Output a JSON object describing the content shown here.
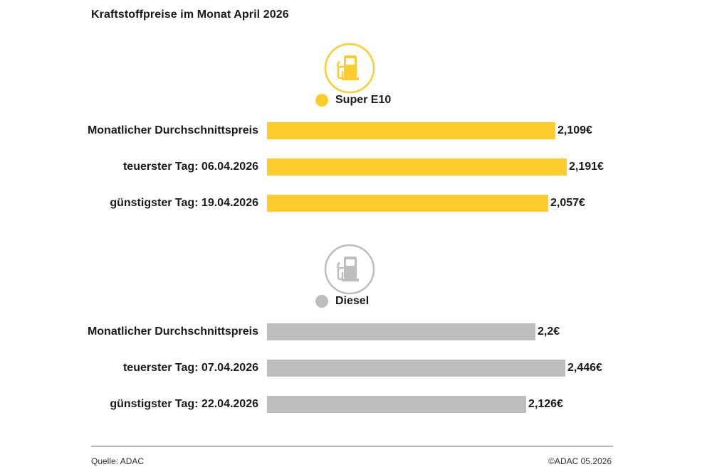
{
  "chart_data": {
    "type": "bar",
    "orientation": "horizontal",
    "title": "Kraftstoffpreise im Monat April 2026",
    "unit": "€",
    "groups": [
      {
        "name": "Super E10",
        "color": "#ffcc2e",
        "icon": "fuel-pump-icon",
        "categories": [
          "Monatlicher Durchschnittspreis",
          "teuerster Tag: 06.04.2026",
          "günstigster Tag: 19.04.2026"
        ],
        "values": [
          2.109,
          2.191,
          2.057
        ],
        "value_labels": [
          "2,109€",
          "2,191€",
          "2,057€"
        ]
      },
      {
        "name": "Diesel",
        "color": "#bdbdbd",
        "icon": "fuel-pump-icon",
        "categories": [
          "Monatlicher Durchschnittspreis",
          "teuerster Tag: 07.04.2026",
          "günstigster Tag: 22.04.2026"
        ],
        "values": [
          2.2,
          2.446,
          2.126
        ],
        "value_labels": [
          "2,2€",
          "2,446€",
          "2,126€"
        ]
      }
    ]
  },
  "footer": {
    "source": "Quelle: ADAC",
    "copyright": "©ADAC 05.2026"
  }
}
